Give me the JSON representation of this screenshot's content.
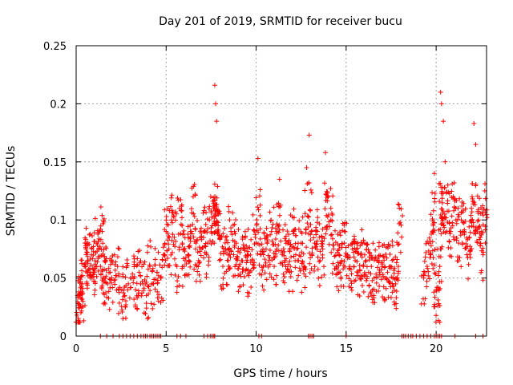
{
  "chart_data": {
    "type": "scatter",
    "title": "Day 201 of 2019, SRMTID for receiver bucu",
    "xlabel": "GPS time / hours",
    "ylabel": "SRMTID / TECUs",
    "xlim": [
      0,
      22.8
    ],
    "ylim": [
      0,
      0.25
    ],
    "x_ticks": [
      0,
      5,
      10,
      15,
      20
    ],
    "y_ticks": [
      0,
      0.05,
      0.1,
      0.15,
      0.2,
      0.25
    ],
    "x_tick_labels": [
      "0",
      "5",
      "10",
      "15",
      "20"
    ],
    "y_tick_labels": [
      "0",
      "0.05",
      "0.1",
      "0.15",
      "0.2",
      "0.25"
    ],
    "grid": true,
    "marker": "+",
    "series": [
      {
        "name": "SRMTID",
        "color": "#ff0000",
        "description": "dense scatter of ~2000 samples; values mostly 0.03-0.09 TECU, gaps at zero",
        "x": [
          0.05,
          0.12,
          0.2,
          0.28,
          0.35,
          0.45,
          0.55,
          0.65,
          0.75,
          0.85,
          0.95,
          1.05,
          1.15,
          1.25,
          1.35,
          1.45,
          1.55,
          1.65,
          1.75,
          1.9,
          2.1,
          2.3,
          2.5,
          2.7,
          2.9,
          3.1,
          3.3,
          3.5,
          3.7,
          3.9,
          4.1,
          4.3,
          4.5,
          4.7,
          4.85,
          5.0,
          5.15,
          5.3,
          5.45,
          5.6,
          5.75,
          5.9,
          6.05,
          6.2,
          6.35,
          6.5,
          6.65,
          6.8,
          6.95,
          7.1,
          7.25,
          7.4,
          7.55,
          7.7,
          7.75,
          7.8,
          7.85,
          8.0,
          8.15,
          8.3,
          8.45,
          8.6,
          8.75,
          8.9,
          9.05,
          9.2,
          9.35,
          9.5,
          9.65,
          9.8,
          9.95,
          10.1,
          10.25,
          10.4,
          10.55,
          10.7,
          10.85,
          11.0,
          11.15,
          11.3,
          11.45,
          11.6,
          11.75,
          11.9,
          12.05,
          12.2,
          12.35,
          12.5,
          12.65,
          12.8,
          12.95,
          13.1,
          13.25,
          13.4,
          13.55,
          13.7,
          13.85,
          14.0,
          14.15,
          14.3,
          14.45,
          14.6,
          14.75,
          14.9,
          15.05,
          15.2,
          15.35,
          15.5,
          15.65,
          15.8,
          15.95,
          16.1,
          16.25,
          16.4,
          16.55,
          16.7,
          16.85,
          17.0,
          17.15,
          17.3,
          17.45,
          17.6,
          17.75,
          17.9,
          18.0,
          19.3,
          19.5,
          19.7,
          19.8,
          19.9,
          20.0,
          20.1,
          20.2,
          20.25,
          20.3,
          20.4,
          20.5,
          20.65,
          20.8,
          20.95,
          21.1,
          21.25,
          21.4,
          21.55,
          21.7,
          21.85,
          22.0,
          22.1,
          22.2,
          22.35,
          22.5,
          22.6,
          22.7
        ],
        "y": [
          0.018,
          0.028,
          0.035,
          0.032,
          0.045,
          0.06,
          0.075,
          0.065,
          0.058,
          0.07,
          0.055,
          0.062,
          0.08,
          0.075,
          0.06,
          0.09,
          0.05,
          0.065,
          0.045,
          0.055,
          0.048,
          0.06,
          0.04,
          0.035,
          0.045,
          0.05,
          0.04,
          0.055,
          0.045,
          0.035,
          0.06,
          0.045,
          0.055,
          0.05,
          0.07,
          0.09,
          0.075,
          0.1,
          0.085,
          0.06,
          0.11,
          0.08,
          0.065,
          0.07,
          0.09,
          0.12,
          0.08,
          0.065,
          0.075,
          0.09,
          0.07,
          0.1,
          0.095,
          0.216,
          0.2,
          0.185,
          0.105,
          0.085,
          0.06,
          0.075,
          0.065,
          0.09,
          0.07,
          0.08,
          0.06,
          0.065,
          0.075,
          0.07,
          0.055,
          0.065,
          0.085,
          0.153,
          0.07,
          0.06,
          0.075,
          0.065,
          0.09,
          0.06,
          0.075,
          0.135,
          0.07,
          0.065,
          0.08,
          0.06,
          0.09,
          0.07,
          0.065,
          0.08,
          0.06,
          0.145,
          0.173,
          0.07,
          0.08,
          0.09,
          0.065,
          0.075,
          0.158,
          0.12,
          0.1,
          0.075,
          0.06,
          0.07,
          0.065,
          0.08,
          0.07,
          0.06,
          0.075,
          0.065,
          0.055,
          0.07,
          0.06,
          0.065,
          0.055,
          0.06,
          0.05,
          0.065,
          0.055,
          0.06,
          0.05,
          0.055,
          0.06,
          0.05,
          0.045,
          0.06,
          0.098,
          0.05,
          0.06,
          0.07,
          0.09,
          0.14,
          0.04,
          0.026,
          0.06,
          0.21,
          0.2,
          0.185,
          0.15,
          0.13,
          0.09,
          0.12,
          0.1,
          0.08,
          0.1,
          0.09,
          0.07,
          0.085,
          0.12,
          0.183,
          0.165,
          0.1,
          0.09,
          0.07,
          0.125
        ]
      }
    ],
    "zero_markers_x": [
      1.35,
      1.7,
      2.05,
      2.4,
      2.6,
      2.8,
      3.0,
      3.2,
      3.4,
      3.6,
      3.75,
      3.85,
      3.95,
      4.1,
      4.2,
      4.3,
      4.4,
      4.5,
      4.6,
      4.7,
      5.6,
      5.8,
      6.1,
      7.1,
      7.3,
      7.45,
      7.55,
      7.65,
      7.7,
      10.15,
      10.3,
      12.9,
      13.0,
      13.1,
      13.2,
      15.0,
      18.1,
      18.2,
      18.3,
      18.45,
      18.6,
      18.7,
      18.9,
      19.1,
      19.3,
      19.5,
      19.7,
      19.9,
      20.0,
      20.1,
      20.2,
      20.3,
      21.05,
      22.2,
      22.6
    ]
  }
}
